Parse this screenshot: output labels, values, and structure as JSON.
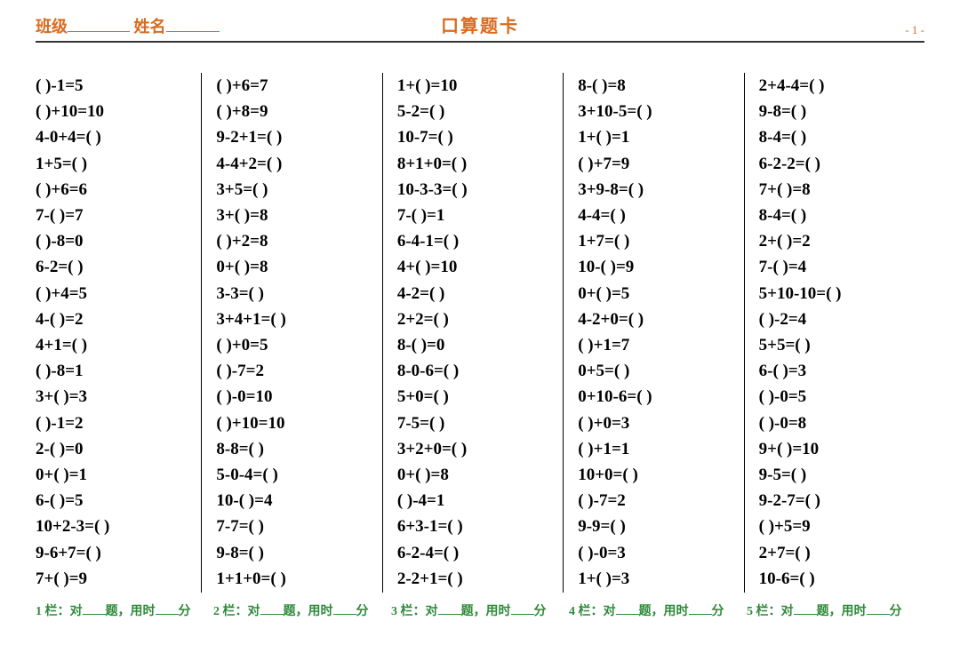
{
  "header": {
    "class_label": "班级",
    "name_label": "姓名",
    "title": "口算题卡",
    "page": "- 1 -"
  },
  "columns": [
    {
      "problems": [
        "(  )-1=5",
        "(  )+10=10",
        "4-0+4=(   )",
        "1+5=(   )",
        "(  )+6=6",
        "7-(   )=7",
        "(  )-8=0",
        "6-2=(   )",
        "(  )+4=5",
        "4-(   )=2",
        "4+1=(   )",
        "(  )-8=1",
        "3+(   )=3",
        "(  )-1=2",
        "2-(   )=0",
        "0+(   )=1",
        "6-(   )=5",
        "10+2-3=(   )",
        "9-6+7=(   )",
        "7+(   )=9"
      ]
    },
    {
      "problems": [
        "(  )+6=7",
        "(  )+8=9",
        "9-2+1=(   )",
        "4-4+2=(   )",
        "3+5=(   )",
        "3+(   )=8",
        "(  )+2=8",
        "0+(   )=8",
        "3-3=(   )",
        "3+4+1=(   )",
        "(  )+0=5",
        "(  )-7=2",
        "(  )-0=10",
        "(  )+10=10",
        "8-8=(   )",
        "5-0-4=(   )",
        "10-(   )=4",
        "7-7=(   )",
        "9-8=(   )",
        "1+1+0=(   )"
      ]
    },
    {
      "problems": [
        "1+(   )=10",
        "5-2=(   )",
        "10-7=(   )",
        "8+1+0=(   )",
        "10-3-3=(   )",
        "7-(   )=1",
        "6-4-1=(   )",
        "4+(   )=10",
        "4-2=(   )",
        "2+2=(   )",
        "8-(   )=0",
        "8-0-6=(   )",
        "5+0=(   )",
        "7-5=(   )",
        "3+2+0=(   )",
        "0+(   )=8",
        "(  )-4=1",
        "6+3-1=(   )",
        "6-2-4=(   )",
        "2-2+1=(   )"
      ]
    },
    {
      "problems": [
        "8-(   )=8",
        "3+10-5=(   )",
        "1+(   )=1",
        "(  )+7=9",
        "3+9-8=(   )",
        "4-4=(   )",
        "1+7=(   )",
        "10-(   )=9",
        "0+(   )=5",
        "4-2+0=(   )",
        "(  )+1=7",
        "0+5=(   )",
        "0+10-6=(   )",
        "(  )+0=3",
        "(  )+1=1",
        "10+0=(   )",
        "(  )-7=2",
        "9-9=(   )",
        "(  )-0=3",
        "1+(   )=3"
      ]
    },
    {
      "problems": [
        "2+4-4=(   )",
        "9-8=(   )",
        "8-4=(   )",
        "6-2-2=(   )",
        "7+(   )=8",
        "8-4=(   )",
        "2+(   )=2",
        "7-(   )=4",
        "5+10-10=(   )",
        "(  )-2=4",
        "5+5=(   )",
        "6-(   )=3",
        "(  )-0=5",
        "(  )-0=8",
        "9+(   )=10",
        "9-5=(   )",
        "9-2-7=(   )",
        "(  )+5=9",
        "2+7=(   )",
        "10-6=(   )"
      ]
    }
  ],
  "footer": {
    "col_label": "栏：对",
    "q_label": "题，用时",
    "min_label": "分"
  }
}
